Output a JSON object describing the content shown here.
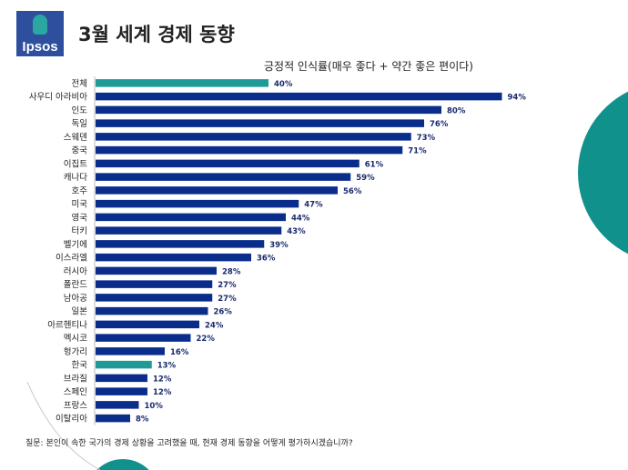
{
  "logo": "Ipsos",
  "header": {
    "title": "3월 세계 경제 동향"
  },
  "footer": {
    "question": "질문: 본인이 속한 국가의 경제 상황을 고려했을 때,  현재 경제 동향을 어떻게 평가하시겠습니까?"
  },
  "colors": {
    "bar": "#0a2d8c",
    "highlight": "#1f9a96",
    "accent": "#11918c"
  },
  "chart_data": {
    "type": "bar",
    "orientation": "horizontal",
    "title": "긍정적 인식률(매우 좋다 + 약간 좋은 편이다)",
    "categories": [
      "전체",
      "사우디 아라비아",
      "인도",
      "독일",
      "스웨덴",
      "중국",
      "이집트",
      "캐나다",
      "호주",
      "미국",
      "영국",
      "터키",
      "벨기에",
      "이스라엘",
      "러시아",
      "폴란드",
      "남아공",
      "일본",
      "아르헨티나",
      "멕시코",
      "헝가리",
      "한국",
      "브라질",
      "스페인",
      "프랑스",
      "이탈리아"
    ],
    "values": [
      40,
      94,
      80,
      76,
      73,
      71,
      61,
      59,
      56,
      47,
      44,
      43,
      39,
      36,
      28,
      27,
      27,
      26,
      24,
      22,
      16,
      13,
      12,
      12,
      10,
      8
    ],
    "highlighted": [
      "전체",
      "한국"
    ],
    "value_format": "percent"
  }
}
